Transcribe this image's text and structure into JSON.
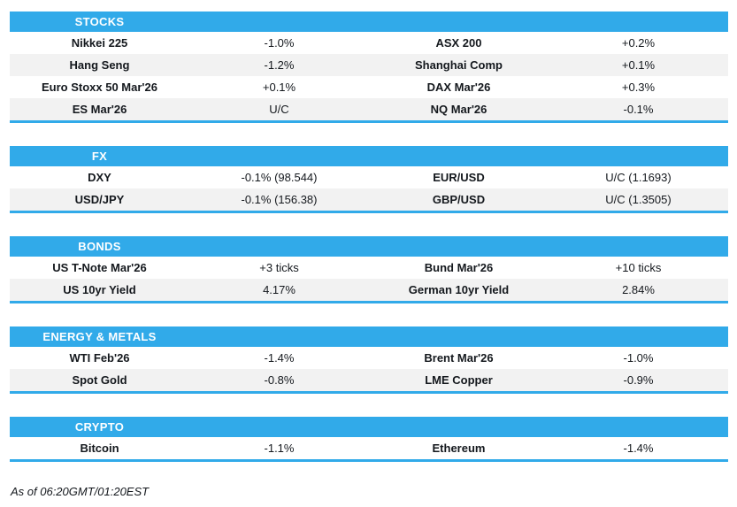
{
  "colors": {
    "accent_blue": "#31aae9",
    "alt_row_gray": "#f2f2f2",
    "text": "#14181d"
  },
  "sections": [
    {
      "title": "STOCKS",
      "rows": [
        [
          "Nikkei 225",
          "-1.0%",
          "ASX 200",
          "+0.2%"
        ],
        [
          "Hang Seng",
          "-1.2%",
          "Shanghai Comp",
          "+0.1%"
        ],
        [
          "Euro Stoxx 50 Mar'26",
          "+0.1%",
          "DAX Mar'26",
          "+0.3%"
        ],
        [
          "ES Mar'26",
          "U/C",
          "NQ Mar'26",
          "-0.1%"
        ]
      ]
    },
    {
      "title": "FX",
      "rows": [
        [
          "DXY",
          "-0.1% (98.544)",
          "EUR/USD",
          "U/C (1.1693)"
        ],
        [
          "USD/JPY",
          "-0.1% (156.38)",
          "GBP/USD",
          "U/C (1.3505)"
        ]
      ]
    },
    {
      "title": "BONDS",
      "rows": [
        [
          "US T-Note Mar'26",
          "+3 ticks",
          "Bund Mar'26",
          "+10 ticks"
        ],
        [
          "US 10yr Yield",
          "4.17%",
          "German 10yr Yield",
          "2.84%"
        ]
      ]
    },
    {
      "title": "ENERGY & METALS",
      "rows": [
        [
          "WTI Feb'26",
          "-1.4%",
          "Brent Mar'26",
          "-1.0%"
        ],
        [
          "Spot Gold",
          "-0.8%",
          "LME Copper",
          "-0.9%"
        ]
      ]
    },
    {
      "title": "CRYPTO",
      "rows": [
        [
          "Bitcoin",
          "-1.1%",
          "Ethereum",
          "-1.4%"
        ]
      ]
    }
  ],
  "footer": {
    "as_of": "As of 06:20GMT/01:20EST"
  }
}
